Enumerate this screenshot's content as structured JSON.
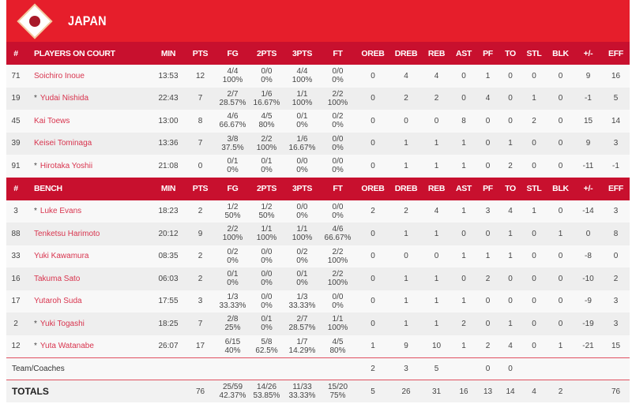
{
  "team": {
    "name": "JAPAN",
    "logo": "japan-flag-diamond-logo"
  },
  "colors": {
    "header": "#e61e2b",
    "table_header": "#c8102e",
    "player_link": "#d8344e"
  },
  "columns": [
    "MIN",
    "PTS",
    "FG",
    "2PTS",
    "3PTS",
    "FT",
    "OREB",
    "DREB",
    "REB",
    "AST",
    "PF",
    "TO",
    "STL",
    "BLK",
    "+/-",
    "EFF"
  ],
  "number_header": "#",
  "sections": [
    {
      "title": "PLAYERS ON COURT",
      "players": [
        {
          "no": "71",
          "star": "",
          "name": "Soichiro Inoue",
          "stats": [
            "13:53",
            "12",
            "4/4\n100%",
            "0/0\n0%",
            "4/4\n100%",
            "0/0\n0%",
            "0",
            "4",
            "4",
            "0",
            "1",
            "0",
            "0",
            "0",
            "9",
            "16"
          ]
        },
        {
          "no": "19",
          "star": "*",
          "name": "Yudai Nishida",
          "stats": [
            "22:43",
            "7",
            "2/7\n28.57%",
            "1/6\n16.67%",
            "1/1\n100%",
            "2/2\n100%",
            "0",
            "2",
            "2",
            "0",
            "4",
            "0",
            "1",
            "0",
            "-1",
            "5"
          ]
        },
        {
          "no": "45",
          "star": "",
          "name": "Kai Toews",
          "stats": [
            "13:00",
            "8",
            "4/6\n66.67%",
            "4/5\n80%",
            "0/1\n0%",
            "0/2\n0%",
            "0",
            "0",
            "0",
            "8",
            "0",
            "0",
            "2",
            "0",
            "15",
            "14"
          ]
        },
        {
          "no": "39",
          "star": "",
          "name": "Keisei Tominaga",
          "stats": [
            "13:36",
            "7",
            "3/8\n37.5%",
            "2/2\n100%",
            "1/6\n16.67%",
            "0/0\n0%",
            "0",
            "1",
            "1",
            "1",
            "0",
            "1",
            "0",
            "0",
            "9",
            "3"
          ]
        },
        {
          "no": "91",
          "star": "*",
          "name": "Hirotaka Yoshii",
          "stats": [
            "21:08",
            "0",
            "0/1\n0%",
            "0/1\n0%",
            "0/0\n0%",
            "0/0\n0%",
            "0",
            "1",
            "1",
            "1",
            "0",
            "2",
            "0",
            "0",
            "-11",
            "-1"
          ]
        }
      ]
    },
    {
      "title": "BENCH",
      "players": [
        {
          "no": "3",
          "star": "*",
          "name": "Luke Evans",
          "stats": [
            "18:23",
            "2",
            "1/2\n50%",
            "1/2\n50%",
            "0/0\n0%",
            "0/0\n0%",
            "2",
            "2",
            "4",
            "1",
            "3",
            "4",
            "1",
            "0",
            "-14",
            "3"
          ]
        },
        {
          "no": "88",
          "star": "",
          "name": "Tenketsu Harimoto",
          "stats": [
            "20:12",
            "9",
            "2/2\n100%",
            "1/1\n100%",
            "1/1\n100%",
            "4/6\n66.67%",
            "0",
            "1",
            "1",
            "0",
            "0",
            "1",
            "0",
            "1",
            "0",
            "8"
          ]
        },
        {
          "no": "33",
          "star": "",
          "name": "Yuki Kawamura",
          "stats": [
            "08:35",
            "2",
            "0/2\n0%",
            "0/0\n0%",
            "0/2\n0%",
            "2/2\n100%",
            "0",
            "0",
            "0",
            "1",
            "1",
            "1",
            "0",
            "0",
            "-8",
            "0"
          ]
        },
        {
          "no": "16",
          "star": "",
          "name": "Takuma Sato",
          "stats": [
            "06:03",
            "2",
            "0/1\n0%",
            "0/0\n0%",
            "0/1\n0%",
            "2/2\n100%",
            "0",
            "1",
            "1",
            "0",
            "2",
            "0",
            "0",
            "0",
            "-10",
            "2"
          ]
        },
        {
          "no": "17",
          "star": "",
          "name": "Yutaroh Suda",
          "stats": [
            "17:55",
            "3",
            "1/3\n33.33%",
            "0/0\n0%",
            "1/3\n33.33%",
            "0/0\n0%",
            "0",
            "1",
            "1",
            "1",
            "0",
            "0",
            "0",
            "0",
            "-9",
            "3"
          ]
        },
        {
          "no": "2",
          "star": "*",
          "name": "Yuki Togashi",
          "stats": [
            "18:25",
            "7",
            "2/8\n25%",
            "0/1\n0%",
            "2/7\n28.57%",
            "1/1\n100%",
            "0",
            "1",
            "1",
            "2",
            "0",
            "1",
            "0",
            "0",
            "-19",
            "3"
          ]
        },
        {
          "no": "12",
          "star": "*",
          "name": "Yuta Watanabe",
          "stats": [
            "26:07",
            "17",
            "6/15\n40%",
            "5/8\n62.5%",
            "1/7\n14.29%",
            "4/5\n80%",
            "1",
            "9",
            "10",
            "1",
            "2",
            "4",
            "0",
            "1",
            "-21",
            "15"
          ]
        }
      ]
    }
  ],
  "team_row": {
    "label": "Team/Coaches",
    "stats": [
      "",
      "",
      "",
      "",
      "",
      "",
      "2",
      "3",
      "5",
      "",
      "0",
      "0",
      "",
      "",
      "",
      ""
    ]
  },
  "totals": {
    "label": "TOTALS",
    "stats": [
      "",
      "76",
      "25/59\n42.37%",
      "14/26\n53.85%",
      "11/33\n33.33%",
      "15/20\n75%",
      "5",
      "26",
      "31",
      "16",
      "13",
      "14",
      "4",
      "2",
      "",
      "76"
    ]
  }
}
